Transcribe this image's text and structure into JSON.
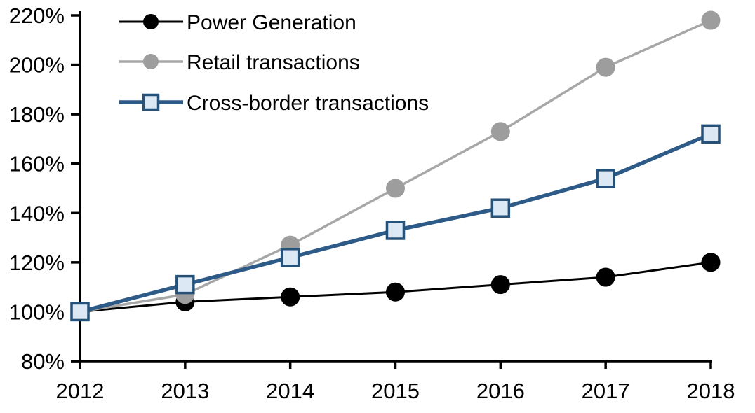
{
  "chart_data": {
    "type": "line",
    "title": "",
    "xlabel": "",
    "ylabel": "",
    "x_categories": [
      "2012",
      "2013",
      "2014",
      "2015",
      "2016",
      "2017",
      "2018"
    ],
    "y_tick_labels": [
      "220%",
      "200%",
      "180%",
      "160%",
      "140%",
      "120%",
      "100%",
      "80%"
    ],
    "y_tick_values": [
      220,
      200,
      180,
      160,
      140,
      120,
      100,
      80
    ],
    "ylim": [
      80,
      220
    ],
    "y_tick_suffix": "%",
    "grid": false,
    "legend_position": "top-left-inside",
    "axis_color": "#000000",
    "background_color": "#ffffff",
    "series": [
      {
        "name": "Power Generation",
        "values": [
          100,
          104,
          106,
          108,
          111,
          114,
          120
        ],
        "line_color": "#000000",
        "line_width": 3,
        "marker": "circle",
        "marker_fill": "#000000",
        "marker_stroke": "#000000"
      },
      {
        "name": "Retail transactions",
        "values": [
          100,
          107,
          127,
          150,
          173,
          199,
          218
        ],
        "line_color": "#a7a7a7",
        "line_width": 3.5,
        "marker": "circle",
        "marker_fill": "#9d9d9d",
        "marker_stroke": "#9d9d9d"
      },
      {
        "name": "Cross-border transactions",
        "values": [
          100,
          111,
          122,
          133,
          142,
          154,
          172
        ],
        "line_color": "#2d5a87",
        "line_width": 5.5,
        "marker": "square",
        "marker_fill": "#dce9f5",
        "marker_stroke": "#265179"
      }
    ]
  }
}
